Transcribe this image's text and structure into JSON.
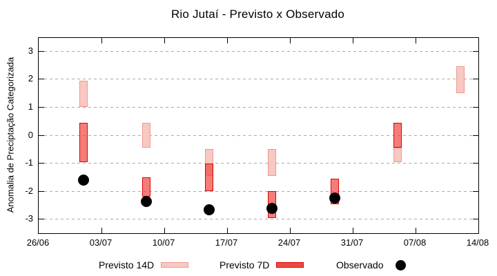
{
  "chart_data": {
    "type": "range-bar",
    "title": "Rio Jutaí - Previsto x Observado",
    "xlabel": "",
    "ylabel": "Anomalia de Preciptação Categorizada",
    "ylim": [
      -3.5,
      3.5
    ],
    "y_ticks": [
      3,
      2,
      1,
      0,
      -1,
      -2,
      -3
    ],
    "x_tick_labels": [
      "26/06",
      "03/07",
      "10/07",
      "17/07",
      "24/07",
      "31/07",
      "07/08",
      "14/08"
    ],
    "x_tick_days": [
      0,
      7,
      14,
      21,
      28,
      35,
      42,
      49
    ],
    "grid": "dashed-horizontal",
    "legend_position": "bottom",
    "series": [
      {
        "name": "Previsto 14D",
        "style": "light-pink-box"
      },
      {
        "name": "Previsto 7D",
        "style": "red-box"
      },
      {
        "name": "Observado",
        "style": "black-dot"
      }
    ],
    "groups": [
      {
        "date": "01/07",
        "day": 5,
        "previsto_14d": [
          1.0,
          1.95
        ],
        "previsto_7d": [
          -0.95,
          0.45
        ],
        "observado": -1.6
      },
      {
        "date": "08/07",
        "day": 12,
        "previsto_14d": [
          -0.45,
          0.45
        ],
        "previsto_7d": [
          -2.2,
          -1.5
        ],
        "observado": -2.35
      },
      {
        "date": "15/07",
        "day": 19,
        "previsto_14d": [
          -1.45,
          -0.5
        ],
        "previsto_7d": [
          -2.0,
          -1.0
        ],
        "observado": -2.65
      },
      {
        "date": "22/07",
        "day": 26,
        "previsto_14d": [
          -1.45,
          -0.5
        ],
        "previsto_7d": [
          -2.95,
          -2.0
        ],
        "observado": -2.6
      },
      {
        "date": "29/07",
        "day": 33,
        "previsto_14d": null,
        "previsto_7d": [
          -2.45,
          -1.55
        ],
        "observado": -2.25
      },
      {
        "date": "05/08",
        "day": 40,
        "previsto_14d": [
          -0.95,
          -0.45
        ],
        "previsto_7d": [
          -0.45,
          0.45
        ],
        "observado": null
      },
      {
        "date": "12/08",
        "day": 47,
        "previsto_14d": [
          1.5,
          2.45
        ],
        "previsto_7d": null,
        "observado": null
      }
    ],
    "colors": {
      "previsto_14d_fill": "#f8c8c2",
      "previsto_14d_border": "#f0988f",
      "previsto_7d_fill": "#ef4640",
      "previsto_7d_border": "#dd0000",
      "observado": "#000000",
      "grid": "#a9a9a9",
      "axis": "#000000"
    }
  },
  "legend": {
    "items": [
      {
        "label": "Previsto 14D"
      },
      {
        "label": "Previsto 7D"
      },
      {
        "label": "Observado"
      }
    ]
  }
}
